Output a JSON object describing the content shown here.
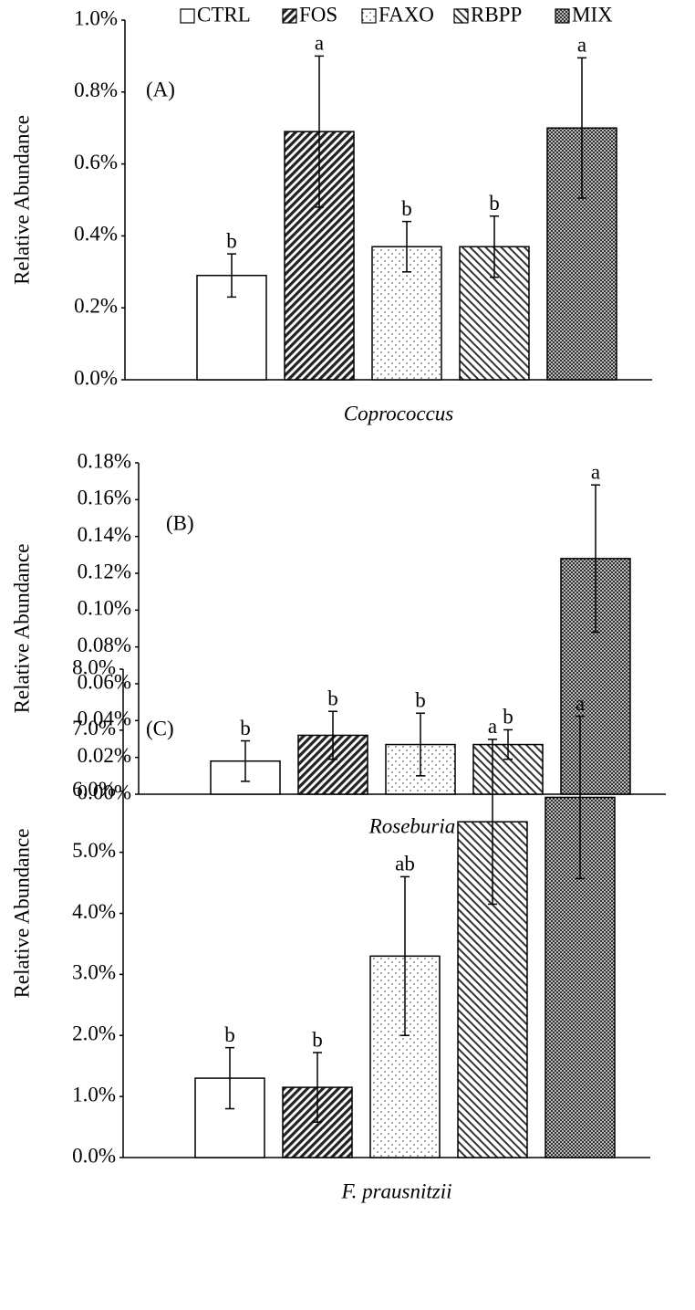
{
  "legend": [
    "CTRL",
    "FOS",
    "FAXO",
    "RBPP",
    "MIX"
  ],
  "chart_data": [
    {
      "type": "bar",
      "panel": "(A)",
      "xlabel": "Coprococcus",
      "ylabel": "Relative Abundance",
      "values": [
        0.29,
        0.69,
        0.37,
        0.37,
        0.7
      ],
      "errors": [
        0.06,
        0.21,
        0.07,
        0.085,
        0.195
      ],
      "annotations": [
        "b",
        "a",
        "b",
        "b",
        "a"
      ],
      "ylim": [
        0,
        1.0
      ],
      "yticks": [
        {
          "value": 0,
          "label": "0.0%"
        },
        {
          "value": 0.2,
          "label": "0.2%"
        },
        {
          "value": 0.4,
          "label": "0.4%"
        },
        {
          "value": 0.6,
          "label": "0.6%"
        },
        {
          "value": 0.8,
          "label": "0.8%"
        },
        {
          "value": 1.0,
          "label": "1.0%"
        }
      ]
    },
    {
      "type": "bar",
      "panel": "(B)",
      "xlabel": "Roseburia",
      "ylabel": "Relative Abundance",
      "values": [
        0.018,
        0.032,
        0.027,
        0.027,
        0.128
      ],
      "errors": [
        0.011,
        0.013,
        0.017,
        0.008,
        0.04
      ],
      "annotations": [
        "b",
        "b",
        "b",
        "b",
        "a"
      ],
      "ylim": [
        0,
        0.18
      ],
      "yticks": [
        {
          "value": 0,
          "label": "0.00%"
        },
        {
          "value": 0.02,
          "label": "0.02%"
        },
        {
          "value": 0.04,
          "label": "0.04%"
        },
        {
          "value": 0.06,
          "label": "0.06%"
        },
        {
          "value": 0.08,
          "label": "0.08%"
        },
        {
          "value": 0.1,
          "label": "0.10%"
        },
        {
          "value": 0.12,
          "label": "0.12%"
        },
        {
          "value": 0.14,
          "label": "0.14%"
        },
        {
          "value": 0.16,
          "label": "0.16%"
        },
        {
          "value": 0.18,
          "label": "0.18%"
        }
      ]
    },
    {
      "type": "bar",
      "panel": "(C)",
      "xlabel": "F. prausnitzii",
      "ylabel": "Relative Abundance",
      "values": [
        1.3,
        1.15,
        3.3,
        5.5,
        5.9
      ],
      "errors": [
        0.5,
        0.57,
        1.3,
        1.35,
        1.33
      ],
      "annotations": [
        "b",
        "b",
        "ab",
        "a",
        "a"
      ],
      "ylim": [
        0,
        8.0
      ],
      "yticks": [
        {
          "value": 0,
          "label": "0.0%"
        },
        {
          "value": 1,
          "label": "1.0%"
        },
        {
          "value": 2,
          "label": "2.0%"
        },
        {
          "value": 3,
          "label": "3.0%"
        },
        {
          "value": 4,
          "label": "4.0%"
        },
        {
          "value": 5,
          "label": "5.0%"
        },
        {
          "value": 6,
          "label": "6.0%"
        },
        {
          "value": 7,
          "label": "7.0%"
        },
        {
          "value": 8,
          "label": "8.0%"
        }
      ]
    }
  ]
}
